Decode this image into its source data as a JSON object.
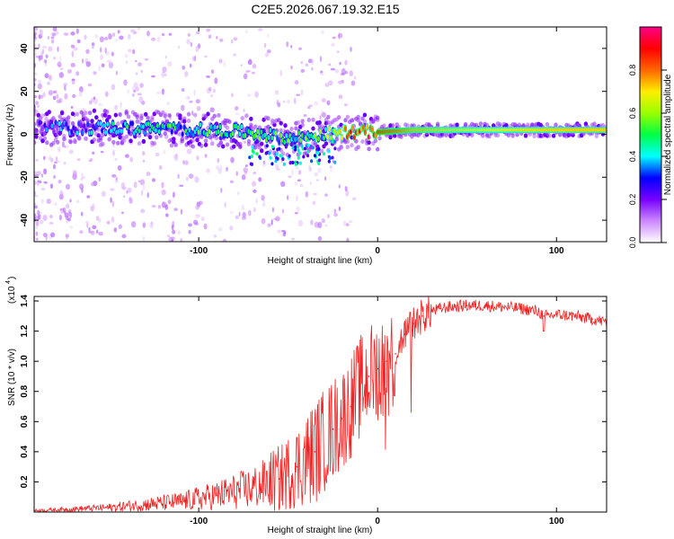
{
  "title": "C2E5.2026.067.19.32.E15",
  "chart_data": [
    {
      "type": "heatmap",
      "xlabel": "Height of straight line (km)",
      "ylabel": "Frequency (Hz)",
      "xlim": [
        -192,
        128
      ],
      "ylim": [
        -50,
        50
      ],
      "xticks": [
        -100,
        0,
        100
      ],
      "yticks": [
        -40,
        -20,
        0,
        20,
        40
      ],
      "colorbar": {
        "label": "Normalized spectral amplitude",
        "range": [
          0,
          1
        ],
        "ticks": [
          0.0,
          0.2,
          0.4,
          0.6,
          0.8
        ],
        "tick_labels": [
          "0.0",
          "0.2",
          "0.4",
          "0.6",
          "0.8"
        ],
        "stops": [
          "#ffffff",
          "#cc88ff",
          "#7700ff",
          "#0000ff",
          "#00ffff",
          "#00ff44",
          "#99ff00",
          "#ffee00",
          "#ff6600",
          "#ff0000",
          "#ff0088"
        ]
      },
      "ridge": {
        "description": "energy concentrated near 0 Hz; scattered below -20 km, narrow stable band (~2 Hz) above 0 km",
        "x": [
          -192,
          -140,
          -100,
          -70,
          -50,
          -30,
          -15,
          0,
          20,
          60,
          100,
          128
        ],
        "freq_center": [
          3,
          3,
          2,
          1,
          -2,
          0,
          1,
          1,
          2,
          2,
          2,
          2
        ],
        "amplitude": [
          0.25,
          0.4,
          0.45,
          0.45,
          0.45,
          0.5,
          0.9,
          0.85,
          0.75,
          0.7,
          0.72,
          0.72
        ]
      }
    },
    {
      "type": "line",
      "xlabel": "Height of straight line (km)",
      "ylabel": "SNR (10 * v/v)",
      "yscale_label": "(x10",
      "yscale_exponent": "4",
      "xlim": [
        -192,
        128
      ],
      "ylim": [
        0,
        1.43
      ],
      "xticks": [
        -100,
        0,
        100
      ],
      "yticks": [
        0.2,
        0.4,
        0.6,
        0.8,
        1.0,
        1.2,
        1.4
      ],
      "color": "#ee2222",
      "series": [
        {
          "name": "SNR",
          "x": [
            -192,
            -170,
            -150,
            -130,
            -110,
            -90,
            -70,
            -55,
            -45,
            -35,
            -25,
            -20,
            -15,
            -10,
            -5,
            0,
            5,
            10,
            15,
            20,
            25,
            30,
            35,
            40,
            50,
            60,
            70,
            80,
            90,
            93,
            100,
            110,
            120,
            128
          ],
          "y": [
            0.01,
            0.02,
            0.03,
            0.05,
            0.07,
            0.11,
            0.16,
            0.22,
            0.3,
            0.4,
            0.55,
            0.62,
            0.7,
            0.82,
            0.9,
            0.95,
            1.0,
            1.05,
            1.18,
            1.25,
            1.3,
            1.33,
            1.35,
            1.36,
            1.37,
            1.37,
            1.36,
            1.35,
            1.33,
            1.3,
            1.31,
            1.3,
            1.28,
            1.26
          ]
        }
      ]
    }
  ]
}
